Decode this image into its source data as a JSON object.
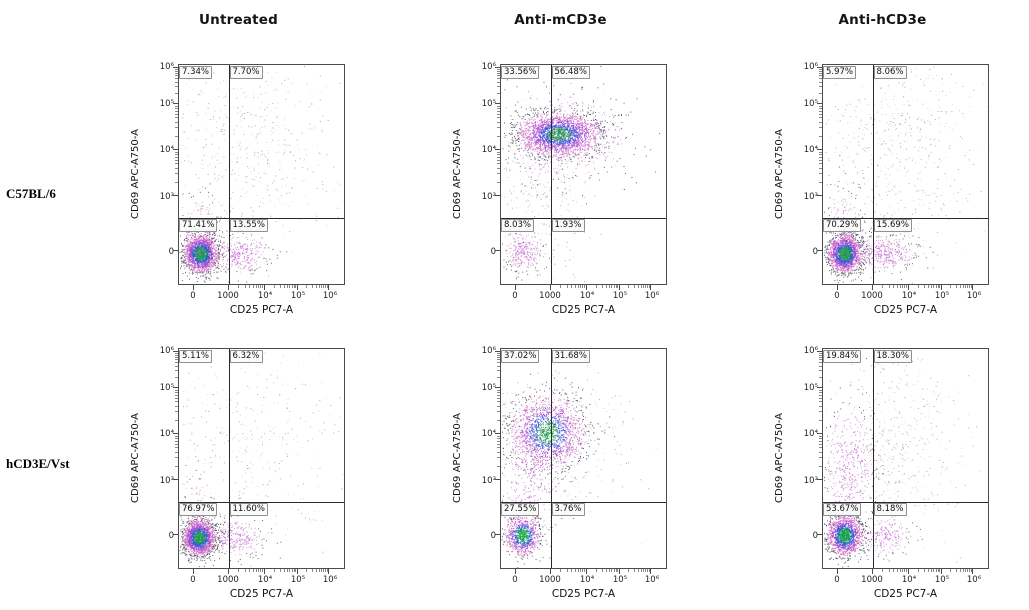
{
  "figure": {
    "column_headers": [
      "Untreated",
      "Anti-mCD3e",
      "Anti-hCD3e"
    ],
    "row_headers": [
      "C57BL/6",
      "hCD3E/Vst"
    ]
  },
  "axes": {
    "xlabel": "CD25 PC7-A",
    "ylabel": "CD69 APC-A750-A",
    "xticks": [
      "0",
      "1000",
      "10⁴",
      "10⁵",
      "10⁶"
    ],
    "yticks": [
      "10⁶",
      "10⁵",
      "10⁴",
      "10³",
      "0"
    ]
  },
  "chart_data": {
    "type": "scatter",
    "subtype": "flow-cytometry-quadrant-plots",
    "x_axis": {
      "label": "CD25 PC7-A",
      "scale": "biexponential",
      "tick_values": [
        0,
        1000,
        10000,
        100000,
        1000000
      ]
    },
    "y_axis": {
      "label": "CD69 APC-A750-A",
      "scale": "biexponential",
      "tick_values": [
        1000000,
        100000,
        10000,
        1000,
        0
      ]
    },
    "legend": "none",
    "grid": false,
    "panels": [
      {
        "row": "C57BL/6",
        "column": "Untreated",
        "quadrants": {
          "upper_left": "7.34%",
          "upper_right": "7.70%",
          "lower_left": "71.41%",
          "lower_right": "13.55%"
        },
        "clusters": [
          {
            "cx": 0.13,
            "cy": 0.86,
            "sx": 0.05,
            "sy": 0.042,
            "n": 1900,
            "palette": "dense"
          },
          {
            "cx": 0.13,
            "cy": 0.79,
            "sx": 0.06,
            "sy": 0.1,
            "n": 200,
            "palette": "mid"
          },
          {
            "cx": 0.36,
            "cy": 0.86,
            "sx": 0.095,
            "sy": 0.045,
            "n": 320,
            "palette": "mid"
          },
          {
            "cx": 0.42,
            "cy": 0.38,
            "sx": 0.27,
            "sy": 0.23,
            "n": 520,
            "palette": "haze"
          }
        ]
      },
      {
        "row": "C57BL/6",
        "column": "Anti-mCD3e",
        "quadrants": {
          "upper_left": "33.56%",
          "upper_right": "56.48%",
          "lower_left": "8.03%",
          "lower_right": "1.93%"
        },
        "clusters": [
          {
            "cx": 0.35,
            "cy": 0.315,
            "sx": 0.125,
            "sy": 0.05,
            "n": 2100,
            "palette": "dense2"
          },
          {
            "cx": 0.4,
            "cy": 0.33,
            "sx": 0.2,
            "sy": 0.1,
            "n": 500,
            "palette": "mid"
          },
          {
            "cx": 0.13,
            "cy": 0.85,
            "sx": 0.06,
            "sy": 0.05,
            "n": 260,
            "palette": "mid"
          },
          {
            "cx": 0.25,
            "cy": 0.55,
            "sx": 0.15,
            "sy": 0.22,
            "n": 380,
            "palette": "haze"
          }
        ]
      },
      {
        "row": "C57BL/6",
        "column": "Anti-hCD3e",
        "quadrants": {
          "upper_left": "5.97%",
          "upper_right": "8.06%",
          "lower_left": "70.29%",
          "lower_right": "15.69%"
        },
        "clusters": [
          {
            "cx": 0.13,
            "cy": 0.86,
            "sx": 0.05,
            "sy": 0.042,
            "n": 1800,
            "palette": "dense"
          },
          {
            "cx": 0.13,
            "cy": 0.78,
            "sx": 0.06,
            "sy": 0.11,
            "n": 220,
            "palette": "mid"
          },
          {
            "cx": 0.37,
            "cy": 0.86,
            "sx": 0.1,
            "sy": 0.045,
            "n": 380,
            "palette": "mid"
          },
          {
            "cx": 0.45,
            "cy": 0.38,
            "sx": 0.26,
            "sy": 0.24,
            "n": 600,
            "palette": "haze"
          }
        ]
      },
      {
        "row": "hCD3E/Vst",
        "column": "Untreated",
        "quadrants": {
          "upper_left": "5.11%",
          "upper_right": "6.32%",
          "lower_left": "76.97%",
          "lower_right": "11.60%"
        },
        "clusters": [
          {
            "cx": 0.12,
            "cy": 0.86,
            "sx": 0.048,
            "sy": 0.04,
            "n": 2000,
            "palette": "dense"
          },
          {
            "cx": 0.12,
            "cy": 0.79,
            "sx": 0.055,
            "sy": 0.1,
            "n": 180,
            "palette": "mid"
          },
          {
            "cx": 0.34,
            "cy": 0.86,
            "sx": 0.09,
            "sy": 0.045,
            "n": 260,
            "palette": "mid"
          },
          {
            "cx": 0.4,
            "cy": 0.4,
            "sx": 0.27,
            "sy": 0.24,
            "n": 420,
            "palette": "haze"
          }
        ]
      },
      {
        "row": "hCD3E/Vst",
        "column": "Anti-mCD3e",
        "quadrants": {
          "upper_left": "37.02%",
          "upper_right": "31.68%",
          "lower_left": "27.55%",
          "lower_right": "3.76%"
        },
        "clusters": [
          {
            "cx": 0.28,
            "cy": 0.38,
            "sx": 0.115,
            "sy": 0.085,
            "n": 1500,
            "palette": "dense2"
          },
          {
            "cx": 0.33,
            "cy": 0.4,
            "sx": 0.2,
            "sy": 0.14,
            "n": 450,
            "palette": "haze"
          },
          {
            "cx": 0.13,
            "cy": 0.85,
            "sx": 0.052,
            "sy": 0.045,
            "n": 850,
            "palette": "dense"
          },
          {
            "cx": 0.17,
            "cy": 0.62,
            "sx": 0.09,
            "sy": 0.16,
            "n": 300,
            "palette": "mid"
          }
        ]
      },
      {
        "row": "hCD3E/Vst",
        "column": "Anti-hCD3e",
        "quadrants": {
          "upper_left": "19.84%",
          "upper_right": "18.30%",
          "lower_left": "53.67%",
          "lower_right": "8.18%"
        },
        "clusters": [
          {
            "cx": 0.13,
            "cy": 0.85,
            "sx": 0.052,
            "sy": 0.045,
            "n": 1500,
            "palette": "dense"
          },
          {
            "cx": 0.16,
            "cy": 0.55,
            "sx": 0.08,
            "sy": 0.17,
            "n": 420,
            "palette": "mid"
          },
          {
            "cx": 0.42,
            "cy": 0.45,
            "sx": 0.2,
            "sy": 0.22,
            "n": 520,
            "palette": "haze"
          },
          {
            "cx": 0.36,
            "cy": 0.85,
            "sx": 0.09,
            "sy": 0.045,
            "n": 200,
            "palette": "mid"
          }
        ]
      }
    ]
  }
}
